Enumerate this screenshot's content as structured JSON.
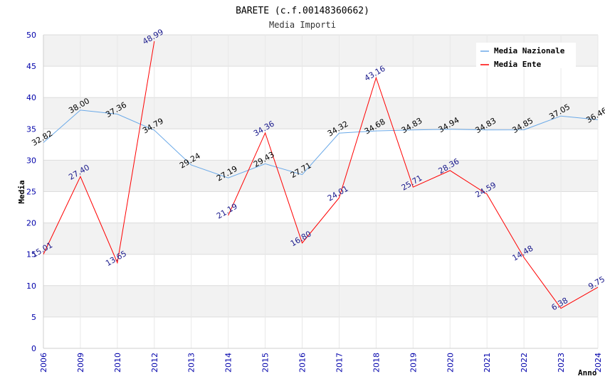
{
  "chart_data": {
    "type": "line",
    "title": "BARETE (c.f.00148360662)",
    "subtitle": "Media Importi",
    "xlabel": "Anno",
    "ylabel": "Media",
    "ylim": [
      0,
      50
    ],
    "yticks": [
      0,
      5,
      10,
      15,
      20,
      25,
      30,
      35,
      40,
      45,
      50
    ],
    "categories": [
      "2006",
      "2009",
      "2010",
      "2012",
      "2013",
      "2014",
      "2015",
      "2016",
      "2017",
      "2018",
      "2019",
      "2020",
      "2021",
      "2022",
      "2023",
      "2024"
    ],
    "series": [
      {
        "name": "Media Nazionale",
        "color": "#6aa9e8",
        "values": [
          32.82,
          38.0,
          37.36,
          34.79,
          29.24,
          27.19,
          29.43,
          27.71,
          34.32,
          34.68,
          34.83,
          34.94,
          34.83,
          34.85,
          37.05,
          36.46
        ],
        "labels": [
          "32.82",
          "38.00",
          "37.36",
          "34.79",
          "29.24",
          "27.19",
          "29.43",
          "27.71",
          "34.32",
          "34.68",
          "34.83",
          "34.94",
          "34.83",
          "34.85",
          "37.05",
          "36.46"
        ]
      },
      {
        "name": "Media Ente",
        "color": "#ff0000",
        "values": [
          15.01,
          27.4,
          13.65,
          48.99,
          null,
          21.19,
          34.36,
          16.8,
          24.01,
          43.16,
          25.71,
          28.36,
          24.59,
          14.48,
          6.38,
          9.75
        ],
        "labels": [
          "15.01",
          "27.40",
          "13.65",
          "48.99",
          null,
          "21.19",
          "34.36",
          "16.80",
          "24.01",
          "43.16",
          "25.71",
          "28.36",
          "24.59",
          "14.48",
          "6.38",
          "9.75"
        ]
      }
    ],
    "grid": true,
    "legend": "top-right"
  }
}
